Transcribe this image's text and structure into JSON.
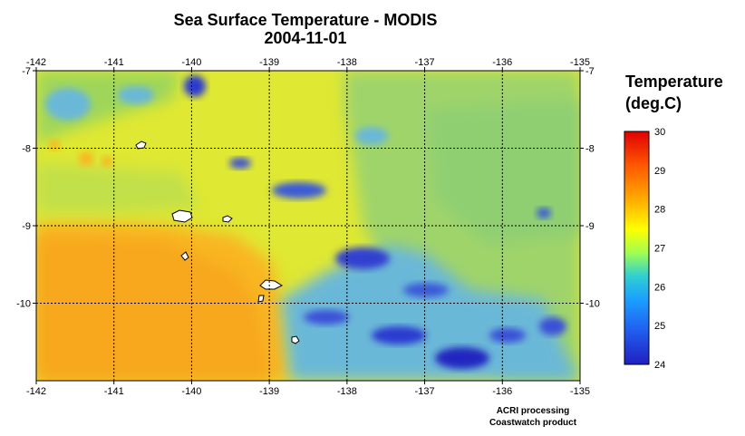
{
  "map": {
    "title": "Sea Surface Temperature - MODIS",
    "date": "2004-11-01",
    "lon_range": [
      -142,
      -135
    ],
    "lat_range": [
      -11,
      -7
    ],
    "lon_ticks": [
      "-142",
      "-141",
      "-140",
      "-139",
      "-138",
      "-137",
      "-136",
      "-135"
    ],
    "lat_ticks": [
      "-7",
      "-8",
      "-9",
      "-10"
    ],
    "grid": "dashed"
  },
  "legend": {
    "title": "Temperature",
    "units": "(deg.C)",
    "labels": [
      "30",
      "29",
      "28",
      "27",
      "26",
      "25",
      "24"
    ],
    "colors": [
      "#e00000",
      "#ff5a00",
      "#ffb000",
      "#ffff00",
      "#a0ff50",
      "#30d0d0",
      "#1aa0ff",
      "#2060f0",
      "#2020c0"
    ]
  },
  "credits": {
    "line1": "ACRI processing",
    "line2": "Coastwatch product"
  },
  "islands": [
    "island"
  ],
  "colors": {
    "warm": "#f9b621",
    "mid": "#e6ea2a",
    "cool": "#8fd36a",
    "cold": "#4aa5e8",
    "coldest": "#2a3ad0"
  }
}
